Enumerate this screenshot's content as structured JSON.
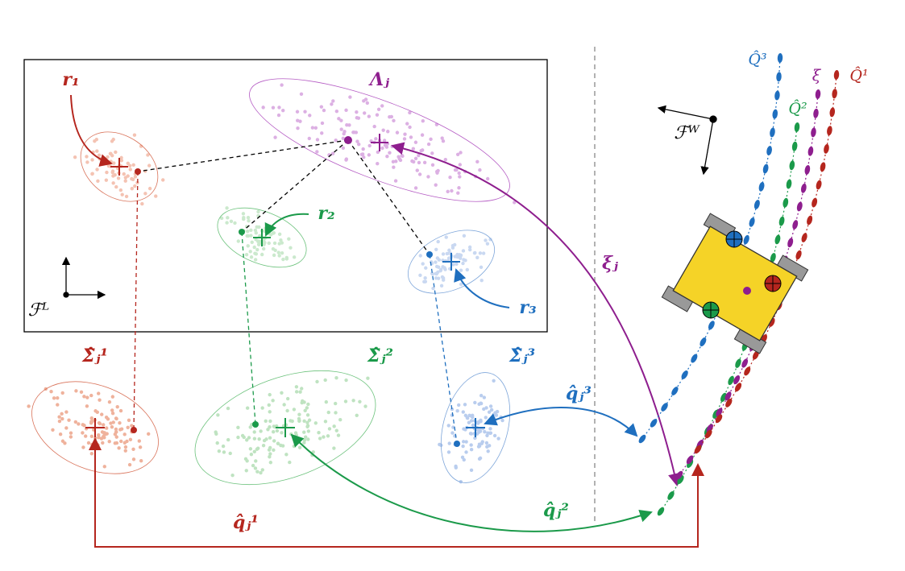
{
  "labels": {
    "r1": "r₁",
    "lambda": "Λⱼ",
    "r2": "r₂",
    "r3": "r₃",
    "frame_local": "ℱᴸ",
    "frame_world": "ℱᵂ",
    "sigma1": "Σ̂ⱼ¹",
    "sigma2": "Σ̂ⱼ²",
    "sigma3": "Σ̂ⱼ³",
    "q1": "q̂ⱼ¹",
    "q2": "q̂ⱼ²",
    "q3": "q̂ⱼ³",
    "xi_j": "ξⱼ",
    "traj3": "Q̂³",
    "traj2": "Q̂²",
    "xi": "ξ",
    "traj1": "Q̂¹"
  }
}
